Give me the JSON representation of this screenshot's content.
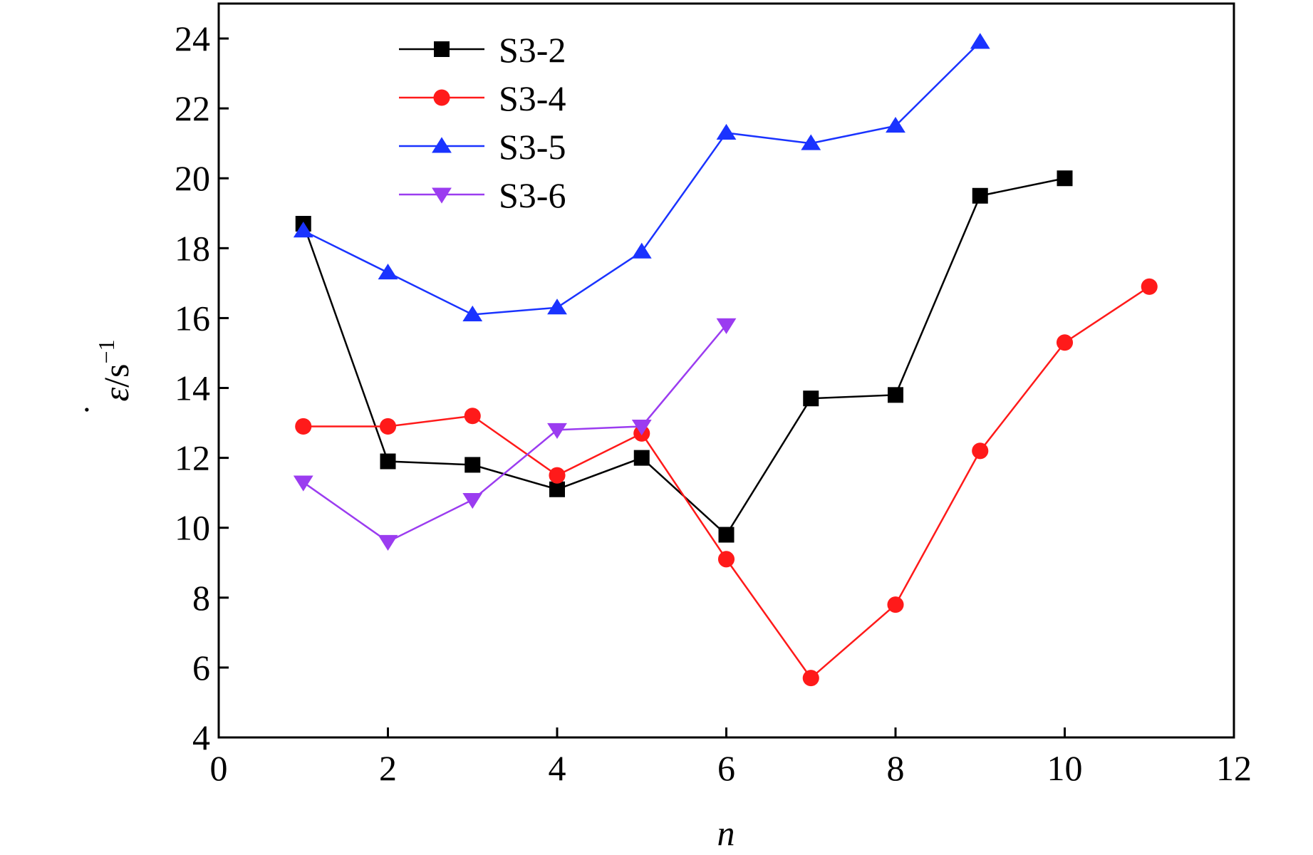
{
  "chart_data": {
    "type": "line",
    "title": "",
    "xlabel": "n",
    "ylabel": "ε̇/s⁻¹",
    "ylabel_parts": {
      "symbol": "ε",
      "dot": "˙",
      "unit": "/s",
      "exponent": "−1"
    },
    "xlim": [
      0,
      12
    ],
    "ylim": [
      4,
      25
    ],
    "x_ticks": [
      0,
      2,
      4,
      6,
      8,
      10,
      12
    ],
    "y_ticks": [
      4,
      6,
      8,
      10,
      12,
      14,
      16,
      18,
      20,
      22,
      24
    ],
    "x_tick_labels": [
      "0",
      "2",
      "4",
      "6",
      "8",
      "10",
      "12"
    ],
    "y_tick_labels": [
      "4",
      "6",
      "8",
      "10",
      "12",
      "14",
      "16",
      "18",
      "20",
      "22",
      "24"
    ],
    "grid": false,
    "legend_position": "top-left",
    "series": [
      {
        "name": "S3-2",
        "color": "#000000",
        "marker": "square",
        "x": [
          1,
          2,
          3,
          4,
          5,
          6,
          7,
          8,
          9,
          10
        ],
        "values": [
          18.7,
          11.9,
          11.8,
          11.1,
          12.0,
          9.8,
          13.7,
          13.8,
          19.5,
          20.0
        ]
      },
      {
        "name": "S3-4",
        "color": "#ff1a1a",
        "marker": "circle",
        "x": [
          1,
          2,
          3,
          4,
          5,
          6,
          7,
          8,
          9,
          10,
          11
        ],
        "values": [
          12.9,
          12.9,
          13.2,
          11.5,
          12.7,
          9.1,
          5.7,
          7.8,
          12.2,
          15.3,
          16.9
        ]
      },
      {
        "name": "S3-5",
        "color": "#1a33ff",
        "marker": "triangle-up",
        "x": [
          1,
          2,
          3,
          4,
          5,
          6,
          7,
          8,
          9
        ],
        "values": [
          18.5,
          17.3,
          16.1,
          16.3,
          17.9,
          21.3,
          21.0,
          21.5,
          23.9
        ]
      },
      {
        "name": "S3-6",
        "color": "#9b3cf0",
        "marker": "triangle-down",
        "x": [
          1,
          2,
          3,
          4,
          5,
          6
        ],
        "values": [
          11.3,
          9.6,
          10.8,
          12.8,
          12.9,
          15.8
        ]
      }
    ]
  }
}
